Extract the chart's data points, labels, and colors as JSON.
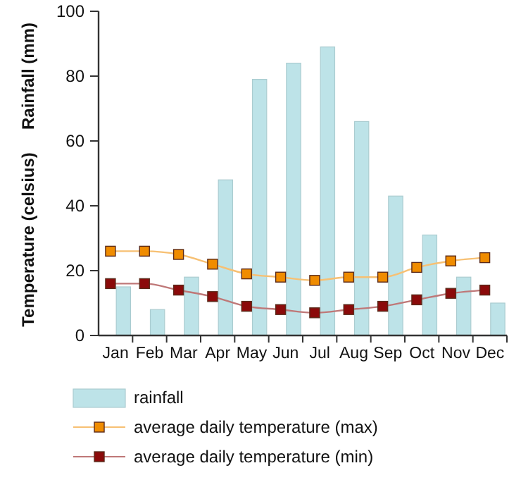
{
  "chart_data": {
    "type": "bar",
    "ylabel": "Rainfall (mm)",
    "y2label": "Temperature (celsius)",
    "categories": [
      "Jan",
      "Feb",
      "Mar",
      "Apr",
      "May",
      "Jun",
      "Jul",
      "Aug",
      "Sep",
      "Oct",
      "Nov",
      "Dec"
    ],
    "series": [
      {
        "name": "rainfall",
        "color": "#bde3e8",
        "values": [
          15,
          8,
          18,
          48,
          79,
          84,
          89,
          66,
          43,
          31,
          18,
          10
        ]
      },
      {
        "name": "average daily temperature (max)",
        "type": "line",
        "color": "#f08c00",
        "values": [
          26,
          26,
          25,
          22,
          19,
          18,
          17,
          18,
          18,
          21,
          23,
          24
        ]
      },
      {
        "name": "average daily temperature (min)",
        "type": "line",
        "color": "#8b0a0a",
        "values": [
          16,
          16,
          14,
          12,
          9,
          8,
          7,
          8,
          9,
          11,
          13,
          14
        ]
      }
    ],
    "ylim": [
      0,
      100
    ],
    "yticks": [
      0,
      20,
      40,
      60,
      80,
      100
    ],
    "grid": false,
    "legend": "bottom",
    "marker": "square",
    "line_style": "solid"
  }
}
